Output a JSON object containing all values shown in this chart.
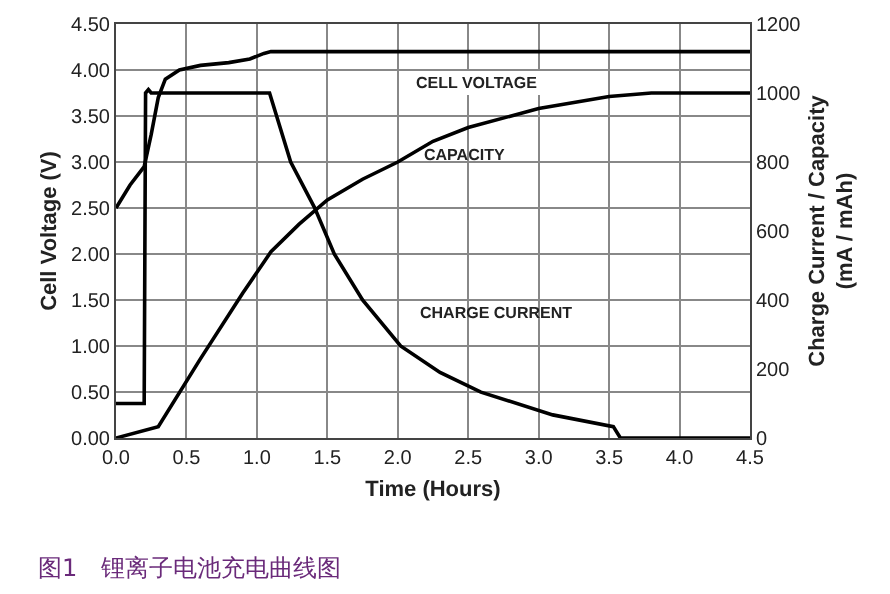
{
  "chart_data": {
    "type": "line",
    "xlabel": "Time (Hours)",
    "ylabel": "Cell Voltage (V)",
    "y2label": "Charge Current / Capacity\n(mA / mAh)",
    "xlim": [
      0,
      4.5
    ],
    "xticks": [
      {
        "value": 0,
        "label": "0.0"
      },
      {
        "value": 0.5,
        "label": "0.5"
      },
      {
        "value": 1,
        "label": "1.0"
      },
      {
        "value": 1.5,
        "label": "1.5"
      },
      {
        "value": 2,
        "label": "2.0"
      },
      {
        "value": 2.5,
        "label": "2.5"
      },
      {
        "value": 3,
        "label": "3.0"
      },
      {
        "value": 3.5,
        "label": "3.5"
      },
      {
        "value": 4,
        "label": "4.0"
      },
      {
        "value": 4.5,
        "label": "4.5"
      }
    ],
    "ylim": [
      0,
      4.5
    ],
    "yticks": [
      {
        "value": 0,
        "label": "0.00"
      },
      {
        "value": 0.5,
        "label": "0.50"
      },
      {
        "value": 1,
        "label": "1.00"
      },
      {
        "value": 1.5,
        "label": "1.50"
      },
      {
        "value": 2,
        "label": "2.00"
      },
      {
        "value": 2.5,
        "label": "2.50"
      },
      {
        "value": 3,
        "label": "3.00"
      },
      {
        "value": 3.5,
        "label": "3.50"
      },
      {
        "value": 4,
        "label": "4.00"
      },
      {
        "value": 4.5,
        "label": "4.50"
      }
    ],
    "y2lim": [
      0,
      1200
    ],
    "y2ticks": [
      0,
      200,
      400,
      600,
      800,
      1000,
      1200
    ],
    "grid": true,
    "marker": "none",
    "line_style": "solid",
    "series": [
      {
        "color": "#000000",
        "x": [
          0,
          0.1,
          0.2,
          0.25,
          0.3,
          0.35,
          0.45,
          0.6,
          0.8,
          0.95,
          1.05,
          1.1,
          1.5,
          2,
          3,
          4.5
        ],
        "values": [
          2.5,
          2.75,
          2.95,
          3.3,
          3.7,
          3.9,
          4.0,
          4.05,
          4.08,
          4.12,
          4.18,
          4.2,
          4.2,
          4.2,
          4.2,
          4.2
        ]
      },
      {
        "color": "#000000",
        "axis": "y2",
        "x": [
          0,
          0.2,
          0.21,
          0.23,
          0.25,
          0.5,
          1.0,
          1.09,
          1.24,
          1.41,
          1.55,
          1.75,
          2.02,
          2.3,
          2.59,
          3.1,
          3.53,
          3.58,
          4.0,
          4.5
        ],
        "values": [
          100,
          100,
          1000,
          1010,
          1000,
          1000,
          1000,
          1000,
          800,
          667,
          533,
          400,
          267,
          190,
          133,
          67,
          33,
          0,
          0,
          0
        ]
      },
      {
        "color": "#000000",
        "axis": "y2",
        "x": [
          0,
          0.3,
          0.6,
          0.9,
          1.1,
          1.3,
          1.5,
          1.75,
          2.0,
          2.25,
          2.5,
          3.0,
          3.5,
          3.8,
          4.5
        ],
        "values": [
          0,
          33,
          230,
          420,
          540,
          620,
          690,
          750,
          800,
          860,
          900,
          955,
          990,
          1000,
          1000
        ]
      }
    ],
    "annotations": [
      "CELL VOLTAGE",
      "CAPACITY",
      "CHARGE CURRENT",
      "图1　锂离子电池充电曲线图"
    ]
  }
}
